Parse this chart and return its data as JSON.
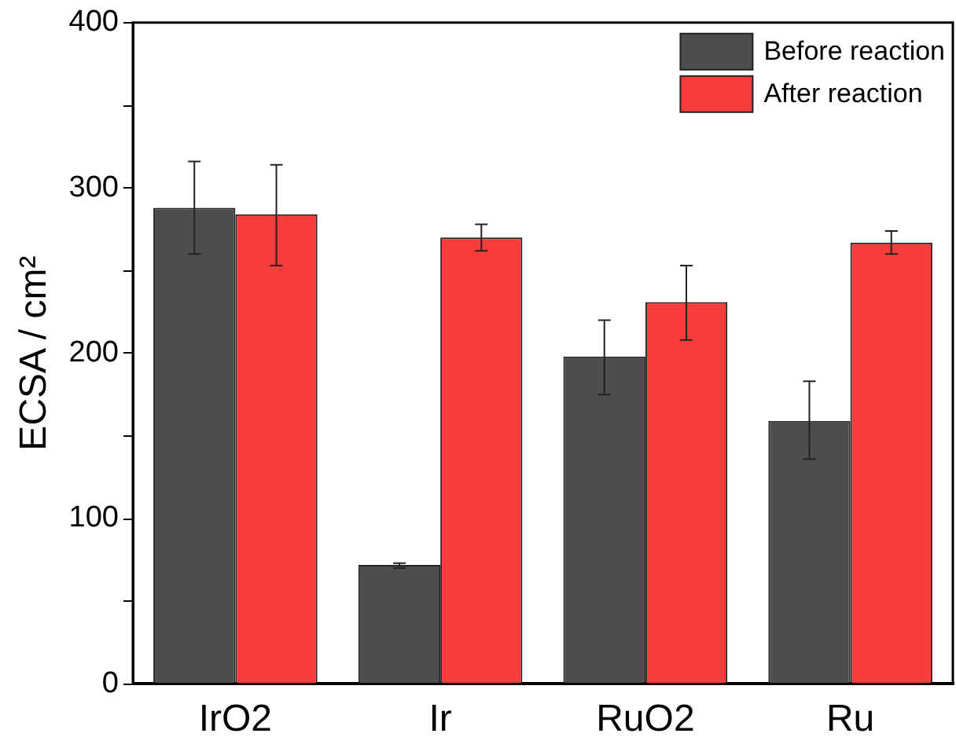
{
  "chart_data": {
    "type": "bar",
    "ylabel": "ECSA / cm²",
    "categories": [
      "IrO2",
      "Ir",
      "RuO2",
      "Ru"
    ],
    "series": [
      {
        "name": "Before reaction",
        "color": "#4d4d4d",
        "values": [
          288,
          72,
          198,
          159
        ],
        "errors": [
          [
            260,
            316
          ],
          [
            70,
            73
          ],
          [
            175,
            220
          ],
          [
            136,
            183
          ]
        ]
      },
      {
        "name": "After reaction",
        "color": "#f73c3c",
        "values": [
          284,
          270,
          231,
          267
        ],
        "errors": [
          [
            253,
            314
          ],
          [
            262,
            278
          ],
          [
            208,
            253
          ],
          [
            260,
            274
          ]
        ]
      }
    ],
    "ylim": [
      0,
      400
    ],
    "yticks": [
      0,
      {
        "value": 50,
        "label": null
      },
      100,
      {
        "value": 150,
        "label": null
      },
      200,
      {
        "value": 250,
        "label": null
      },
      300,
      {
        "value": 350,
        "label": null
      },
      400
    ],
    "grid": false,
    "legend": "top right"
  }
}
